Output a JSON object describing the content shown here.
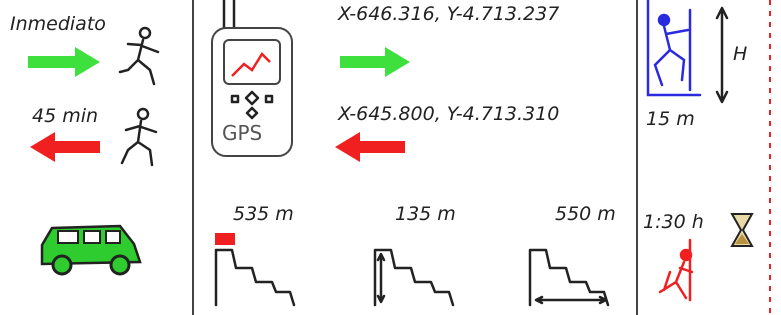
{
  "approach": {
    "time": "Inmediato"
  },
  "return": {
    "time": "45 min"
  },
  "gps": {
    "label": "GPS",
    "start": "X-646.316, Y-4.713.237",
    "end": "X-645.800, Y-4.713.310"
  },
  "profile": {
    "length": "535 m",
    "drop": "135 m",
    "horizontal": "550 m"
  },
  "rappel": {
    "height_label": "H",
    "max": "15 m"
  },
  "duration": "1:30 h"
}
